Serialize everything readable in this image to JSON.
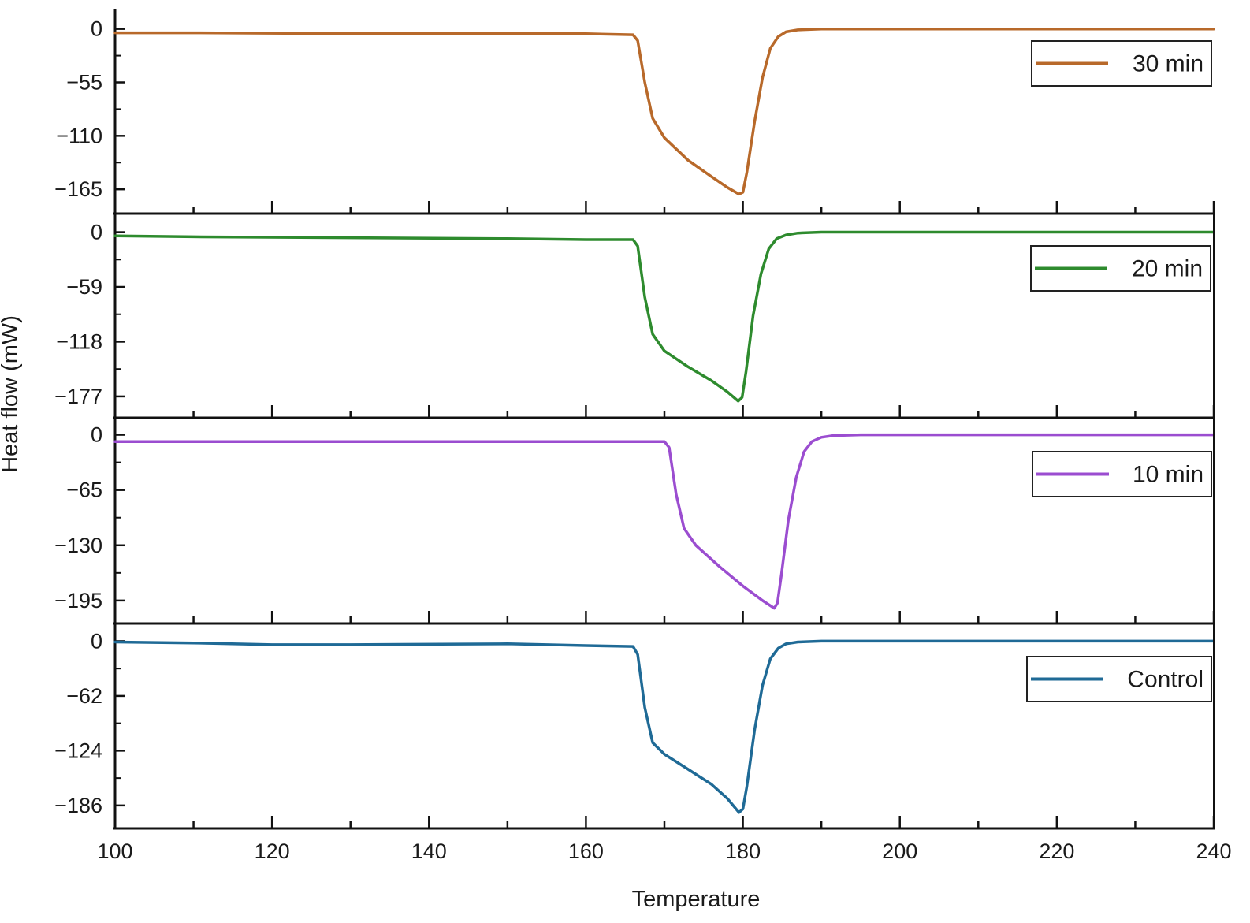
{
  "chart_data": {
    "type": "line",
    "layout": "stacked-panels",
    "xlabel": "Temperature",
    "ylabel": "Heat flow (mW)",
    "xlim": [
      100,
      240
    ],
    "x_ticks": [
      "100",
      "120",
      "140",
      "160",
      "180",
      "200",
      "220",
      "240"
    ],
    "x_tick_values": [
      100,
      120,
      140,
      160,
      180,
      200,
      220,
      240
    ],
    "grid": false,
    "legend_placement": "right of each panel",
    "panels": [
      {
        "name": "30 min",
        "color": "#b8692a",
        "ylim": [
          -190,
          20
        ],
        "y_ticks": [
          "0",
          "−55",
          "−110",
          "−165"
        ],
        "y_tick_values": [
          0,
          -55,
          -110,
          -165
        ],
        "x": [
          100,
          110,
          130,
          150,
          160,
          166,
          166.6,
          167.5,
          168.5,
          170,
          173,
          176,
          178,
          179.5,
          180,
          180.5,
          181.5,
          182.5,
          183.5,
          184.5,
          185.5,
          187,
          190,
          200,
          220,
          240
        ],
        "y": [
          -4,
          -4,
          -5,
          -5,
          -5,
          -6,
          -12,
          -55,
          -92,
          -112,
          -135,
          -152,
          -163,
          -170,
          -168,
          -148,
          -95,
          -50,
          -20,
          -8,
          -3,
          -1,
          0,
          0,
          0,
          0
        ]
      },
      {
        "name": "20 min",
        "color": "#2e8b2e",
        "ylim": [
          -200,
          20
        ],
        "y_ticks": [
          "0",
          "−59",
          "−118",
          "−177"
        ],
        "y_tick_values": [
          0,
          -59,
          -118,
          -177
        ],
        "x": [
          100,
          110,
          130,
          150,
          160,
          166,
          166.6,
          167.5,
          168.5,
          170,
          173,
          176,
          178,
          179.4,
          179.9,
          180.4,
          181.3,
          182.3,
          183.3,
          184.3,
          185.5,
          187,
          190,
          200,
          220,
          240
        ],
        "y": [
          -4,
          -5,
          -6,
          -7,
          -8,
          -8,
          -15,
          -70,
          -110,
          -128,
          -145,
          -160,
          -172,
          -182,
          -178,
          -150,
          -90,
          -45,
          -18,
          -7,
          -3,
          -1,
          0,
          0,
          0,
          0
        ]
      },
      {
        "name": "10 min",
        "color": "#9b4dd0",
        "ylim": [
          -222,
          20
        ],
        "y_ticks": [
          "0",
          "−65",
          "−130",
          "−195"
        ],
        "y_tick_values": [
          0,
          -65,
          -130,
          -195
        ],
        "x": [
          100,
          110,
          130,
          150,
          160,
          170,
          170.6,
          171.5,
          172.5,
          174,
          177,
          180,
          182.5,
          184,
          184.4,
          184.9,
          185.8,
          186.8,
          187.8,
          188.8,
          190,
          191.5,
          195,
          200,
          220,
          240
        ],
        "y": [
          -8,
          -8,
          -8,
          -8,
          -8,
          -8,
          -15,
          -70,
          -110,
          -130,
          -155,
          -178,
          -195,
          -204,
          -198,
          -165,
          -100,
          -50,
          -20,
          -8,
          -3,
          -1,
          0,
          0,
          0,
          0
        ]
      },
      {
        "name": "Control",
        "color": "#1f6a96",
        "ylim": [
          -212,
          20
        ],
        "y_ticks": [
          "0",
          "−62",
          "−124",
          "−186"
        ],
        "y_tick_values": [
          0,
          -62,
          -124,
          -186
        ],
        "x": [
          100,
          110,
          120,
          130,
          150,
          160,
          166,
          166.6,
          167.5,
          168.5,
          170,
          173,
          176,
          178,
          179.5,
          180,
          180.5,
          181.5,
          182.5,
          183.5,
          184.5,
          185.5,
          187,
          190,
          200,
          220,
          240
        ],
        "y": [
          -1,
          -2,
          -4,
          -4,
          -3,
          -5,
          -6,
          -15,
          -75,
          -115,
          -128,
          -145,
          -162,
          -178,
          -194,
          -190,
          -165,
          -100,
          -50,
          -20,
          -8,
          -3,
          -1,
          0,
          0,
          0,
          0
        ]
      }
    ]
  }
}
